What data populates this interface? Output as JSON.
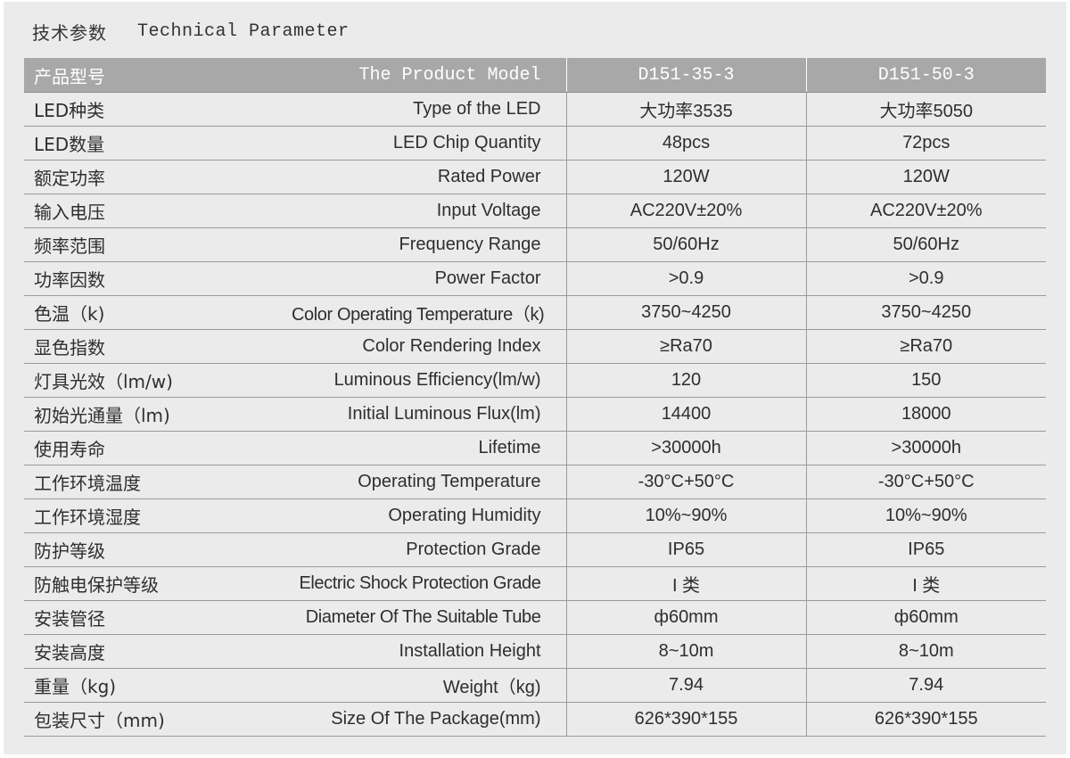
{
  "heading": {
    "cn": "技术参数",
    "en": "Technical Parameter"
  },
  "table": {
    "header": {
      "cn": "产品型号",
      "en": "The Product Model",
      "model_a": "D151-35-3",
      "model_b": "D151-50-3"
    },
    "rows": [
      {
        "cn": "LED种类",
        "en": "Type of the LED",
        "a": "大功率3535",
        "b": "大功率5050"
      },
      {
        "cn": "LED数量",
        "en": "LED Chip Quantity",
        "a": "48pcs",
        "b": "72pcs"
      },
      {
        "cn": "额定功率",
        "en": "Rated Power",
        "a": "120W",
        "b": "120W"
      },
      {
        "cn": "输入电压",
        "en": "Input Voltage",
        "a": "AC220V±20%",
        "b": "AC220V±20%"
      },
      {
        "cn": "频率范围",
        "en": "Frequency Range",
        "a": "50/60Hz",
        "b": "50/60Hz"
      },
      {
        "cn": "功率因数",
        "en": "Power Factor",
        "a": ">0.9",
        "b": ">0.9"
      },
      {
        "cn": "色温（k)",
        "en": "Color Operating Temperature（k)",
        "a": "3750~4250",
        "b": "3750~4250"
      },
      {
        "cn": "显色指数",
        "en": "Color Rendering Index",
        "a": "≥Ra70",
        "b": "≥Ra70"
      },
      {
        "cn": "灯具光效（lm/w)",
        "en": "Luminous Efficiency(lm/w)",
        "a": "120",
        "b": "150"
      },
      {
        "cn": "初始光通量（lm)",
        "en": "Initial Luminous Flux(lm)",
        "a": "14400",
        "b": "18000"
      },
      {
        "cn": "使用寿命",
        "en": "Lifetime",
        "a": ">30000h",
        "b": ">30000h"
      },
      {
        "cn": "工作环境温度",
        "en": "Operating Temperature",
        "a": "-30°C+50°C",
        "b": "-30°C+50°C"
      },
      {
        "cn": "工作环境湿度",
        "en": "Operating Humidity",
        "a": "10%~90%",
        "b": "10%~90%"
      },
      {
        "cn": "防护等级",
        "en": "Protection Grade",
        "a": "IP65",
        "b": "IP65"
      },
      {
        "cn": "防触电保护等级",
        "en": "Electric Shock Protection Grade",
        "a": "I 类",
        "b": "I 类"
      },
      {
        "cn": "安装管径",
        "en": "Diameter Of The Suitable Tube",
        "a": "ф60mm",
        "b": "ф60mm"
      },
      {
        "cn": "安装高度",
        "en": "Installation Height",
        "a": "8~10m",
        "b": "8~10m"
      },
      {
        "cn": "重量（kg)",
        "en": "Weight（kg)",
        "a": "7.94",
        "b": "7.94"
      },
      {
        "cn": "包装尺寸（mm)",
        "en": "Size Of The Package(mm)",
        "a": "626*390*155",
        "b": "626*390*155"
      }
    ]
  }
}
